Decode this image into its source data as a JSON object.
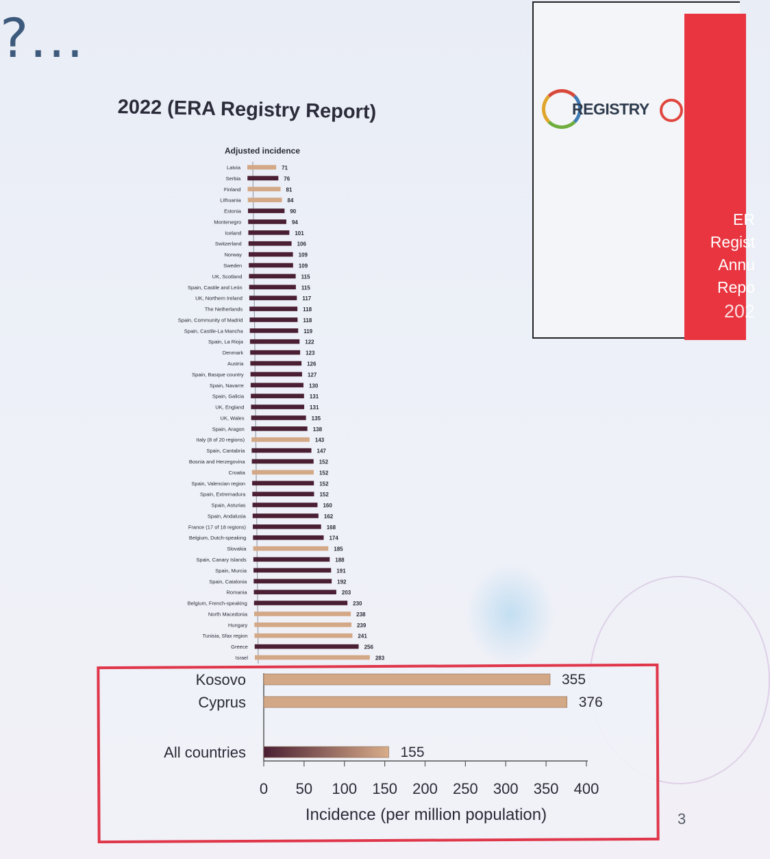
{
  "slide": {
    "heading": "?...",
    "page_number": "3"
  },
  "registry_card": {
    "logo_text": "REGISTRY",
    "lines": [
      "ER",
      "Regist",
      "Annu",
      "Repo",
      "202"
    ]
  },
  "colors": {
    "dark_bar": "#4a1f33",
    "light_bar": "#d3a886",
    "highlight_border": "#e0364a",
    "card_red": "#e8353f"
  },
  "chart_data": [
    {
      "type": "bar",
      "orientation": "horizontal",
      "title": "2022 (ERA Registry Report)",
      "subtitle": "Adjusted incidence",
      "categories": [
        "Latvia",
        "Serbia",
        "Finland",
        "Lithuania",
        "Estonia",
        "Montenegro",
        "Iceland",
        "Switzerland",
        "Norway",
        "Sweden",
        "UK, Scotland",
        "Spain, Castile and León",
        "UK, Northern Ireland",
        "The Netherlands",
        "Spain, Community of Madrid",
        "Spain, Castile-La Mancha",
        "Spain, La Rioja",
        "Denmark",
        "Austria",
        "Spain, Basque country",
        "Spain, Navarre",
        "Spain, Galicia",
        "UK, England",
        "UK, Wales",
        "Spain, Aragon",
        "Italy (8 of 20 regions)",
        "Spain, Cantabria",
        "Bosnia and Herzegovina",
        "Croatia",
        "Spain, Valencian region",
        "Spain, Extremadura",
        "Spain, Asturias",
        "Spain, Andalusia",
        "France (17 of 18 regions)",
        "Belgium, Dutch-speaking",
        "Slovakia",
        "Spain, Canary Islands",
        "Spain, Murcia",
        "Spain, Catalonia",
        "Romania",
        "Belgium, French-speaking",
        "North Macedonia",
        "Hungary",
        "Tunisia, Sfax region",
        "Greece",
        "Israel"
      ],
      "values": [
        71,
        76,
        81,
        84,
        90,
        94,
        101,
        106,
        109,
        109,
        115,
        115,
        117,
        118,
        118,
        119,
        122,
        123,
        126,
        127,
        130,
        131,
        131,
        135,
        138,
        143,
        147,
        152,
        152,
        152,
        152,
        160,
        162,
        168,
        174,
        185,
        188,
        191,
        192,
        203,
        230,
        238,
        239,
        241,
        256,
        283
      ],
      "value_labels": [
        "71",
        "76",
        "81",
        "84",
        "90",
        "94",
        "101",
        "106",
        "109",
        "109",
        "115",
        "115",
        "117",
        "118",
        "118",
        "119",
        "122",
        "123",
        "126",
        "127",
        "130",
        "131",
        "131",
        "135",
        "138",
        "143",
        "147",
        "152",
        "152",
        "152",
        "152",
        "160",
        "162",
        "168",
        "174",
        "185",
        "188",
        "191",
        "192",
        "203",
        "230",
        "238",
        "239",
        "241",
        "256",
        "283"
      ],
      "bar_style": [
        "light",
        "dark",
        "light",
        "light",
        "dark",
        "dark",
        "dark",
        "dark",
        "dark",
        "dark",
        "dark",
        "dark",
        "dark",
        "dark",
        "dark",
        "dark",
        "dark",
        "dark",
        "dark",
        "dark",
        "dark",
        "dark",
        "dark",
        "dark",
        "dark",
        "light",
        "dark",
        "dark",
        "light",
        "dark",
        "dark",
        "dark",
        "dark",
        "dark",
        "dark",
        "light",
        "dark",
        "dark",
        "dark",
        "dark",
        "dark",
        "light",
        "light",
        "light",
        "dark",
        "light"
      ]
    },
    {
      "type": "bar",
      "orientation": "horizontal",
      "categories": [
        "Kosovo",
        "Cyprus",
        "All countries"
      ],
      "values": [
        355,
        376,
        155
      ],
      "value_labels": [
        "355",
        "376",
        "155"
      ],
      "bar_style": [
        "light",
        "light",
        "gradient"
      ],
      "xlabel": "Incidence (per million population)",
      "xlim": [
        0,
        400
      ],
      "xticks": [
        "0",
        "50",
        "100",
        "150",
        "200",
        "250",
        "300",
        "350",
        "400"
      ]
    }
  ]
}
